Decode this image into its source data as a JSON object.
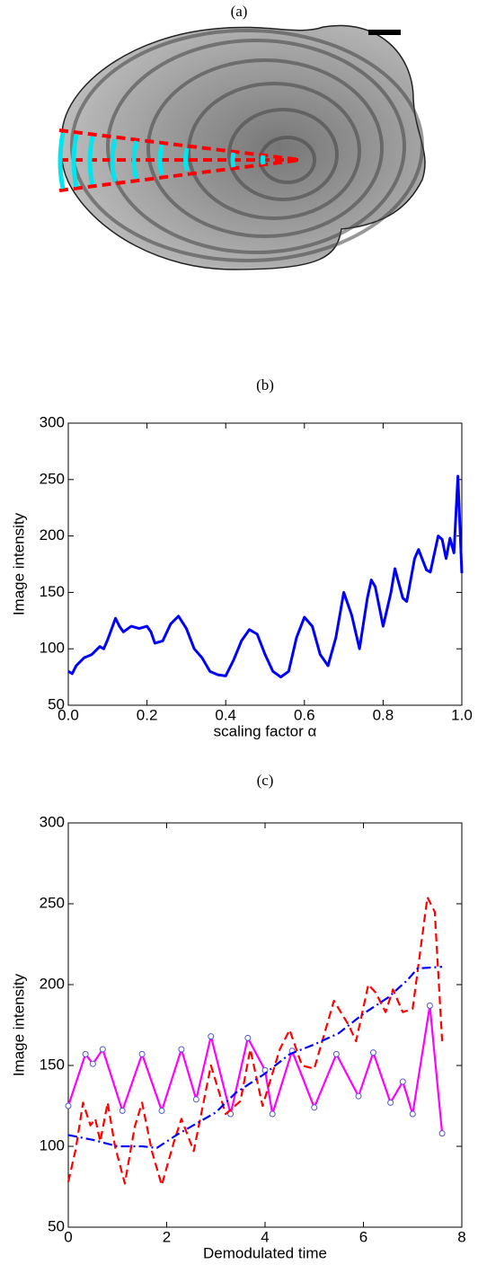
{
  "image_panel": {
    "label": "(a)"
  },
  "chart_data": [
    {
      "type": "line",
      "title": "(b)",
      "x_label": "scaling factor α",
      "y_label": "Image intensity",
      "xlim": [
        0,
        1
      ],
      "ylim": [
        50,
        300
      ],
      "xticks": [
        {
          "value": 0,
          "label": "0.0"
        },
        0.2,
        0.4,
        0.6,
        0.8,
        {
          "value": 1,
          "label": "1.0"
        }
      ],
      "yticks": [
        50,
        100,
        150,
        200,
        250,
        300
      ],
      "series": [
        {
          "color": "#0000ff",
          "line_style": "solid",
          "markers": false,
          "x": [
            0,
            0.01,
            0.02,
            0.04,
            0.06,
            0.08,
            0.09,
            0.1,
            0.12,
            0.13,
            0.14,
            0.16,
            0.18,
            0.2,
            0.21,
            0.22,
            0.24,
            0.26,
            0.28,
            0.3,
            0.32,
            0.34,
            0.36,
            0.38,
            0.4,
            0.42,
            0.44,
            0.46,
            0.48,
            0.5,
            0.52,
            0.54,
            0.56,
            0.58,
            0.6,
            0.62,
            0.64,
            0.66,
            0.68,
            0.7,
            0.72,
            0.74,
            0.76,
            0.77,
            0.78,
            0.8,
            0.82,
            0.83,
            0.85,
            0.86,
            0.88,
            0.89,
            0.91,
            0.92,
            0.94,
            0.95,
            0.96,
            0.97,
            0.98,
            0.99,
            1.0
          ],
          "values": [
            80,
            78,
            85,
            92,
            95,
            102,
            100,
            108,
            127,
            120,
            115,
            120,
            118,
            120,
            115,
            105,
            107,
            122,
            129,
            118,
            100,
            92,
            80,
            77,
            76,
            90,
            107,
            117,
            113,
            95,
            80,
            75,
            80,
            110,
            128,
            120,
            95,
            85,
            110,
            150,
            130,
            100,
            145,
            161,
            155,
            120,
            150,
            171,
            145,
            142,
            180,
            188,
            170,
            168,
            200,
            197,
            180,
            198,
            185,
            253,
            167
          ]
        }
      ]
    },
    {
      "type": "line",
      "title": "(c)",
      "x_label": "Demodulated time",
      "y_label": "Image intensity",
      "xlim": [
        0,
        8
      ],
      "ylim": [
        50,
        300
      ],
      "xticks": [
        0,
        2,
        4,
        6,
        8
      ],
      "yticks": [
        50,
        100,
        150,
        200,
        250,
        300
      ],
      "series": [
        {
          "color": "#ff00ff",
          "line_style": "solid",
          "markers": true,
          "x": [
            0,
            0.35,
            0.5,
            0.7,
            1.1,
            1.5,
            1.9,
            2.3,
            2.6,
            2.9,
            3.3,
            3.65,
            4.0,
            4.15,
            4.55,
            5.0,
            5.45,
            5.9,
            6.2,
            6.55,
            6.8,
            7.0,
            7.35,
            7.6
          ],
          "values": [
            125,
            157,
            151,
            160,
            122,
            157,
            122,
            160,
            129,
            168,
            120,
            167,
            147,
            120,
            159,
            124,
            157,
            131,
            158,
            127,
            140,
            120,
            187,
            108
          ]
        },
        {
          "color": "#ff0000",
          "line_style": "dashed",
          "markers": false,
          "x": [
            0,
            0.15,
            0.3,
            0.45,
            0.55,
            0.65,
            0.8,
            0.95,
            1.15,
            1.35,
            1.5,
            1.7,
            1.9,
            2.15,
            2.3,
            2.55,
            2.9,
            3.2,
            3.5,
            3.7,
            3.95,
            4.3,
            4.5,
            4.75,
            5.0,
            5.4,
            5.7,
            5.85,
            6.1,
            6.25,
            6.45,
            6.6,
            6.8,
            7.0,
            7.3,
            7.45,
            7.6
          ],
          "values": [
            78,
            98,
            127,
            113,
            117,
            103,
            127,
            100,
            77,
            112,
            127,
            97,
            76,
            103,
            117,
            97,
            150,
            120,
            128,
            160,
            125,
            160,
            172,
            150,
            148,
            190,
            175,
            165,
            200,
            195,
            183,
            197,
            183,
            185,
            254,
            245,
            165
          ]
        },
        {
          "color": "#0000ff",
          "line_style": "dashdot",
          "markers": false,
          "x": [
            0,
            0.5,
            1,
            1.5,
            1.8,
            2.2,
            2.6,
            3,
            3.4,
            4,
            4.5,
            5,
            5.5,
            6,
            6.5,
            6.9,
            7.1,
            7.6
          ],
          "values": [
            107,
            104,
            100,
            100,
            99,
            107,
            114,
            121,
            133,
            145,
            157,
            163,
            170,
            182,
            192,
            203,
            210,
            211
          ]
        }
      ]
    }
  ]
}
